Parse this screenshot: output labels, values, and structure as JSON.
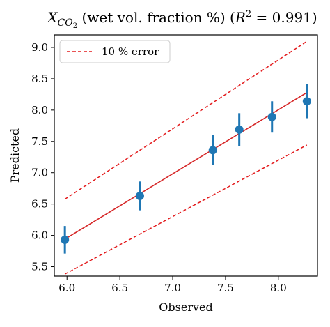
{
  "chart_data": {
    "type": "scatter",
    "title": {
      "var": "X",
      "sub": "CO",
      "subsub": "2",
      "text": " (wet vol. fraction %) (",
      "r": "R",
      "sup": "2",
      "tail": " = 0.991)"
    },
    "xlabel": "Observed",
    "ylabel": "Predicted",
    "xlim": [
      5.88,
      8.37
    ],
    "ylim": [
      5.35,
      9.2
    ],
    "xticks": [
      6.0,
      6.5,
      7.0,
      7.5,
      8.0
    ],
    "xtick_labels": [
      "6.0",
      "6.5",
      "7.0",
      "7.5",
      "8.0"
    ],
    "yticks": [
      5.5,
      6.0,
      6.5,
      7.0,
      7.5,
      8.0,
      8.5,
      9.0
    ],
    "ytick_labels": [
      "5.5",
      "6.0",
      "6.5",
      "7.0",
      "7.5",
      "8.0",
      "8.5",
      "9.0"
    ],
    "grid": false,
    "points": [
      {
        "x": 5.98,
        "y": 5.93,
        "err": 0.22
      },
      {
        "x": 6.69,
        "y": 6.63,
        "err": 0.23
      },
      {
        "x": 7.38,
        "y": 7.36,
        "err": 0.24
      },
      {
        "x": 7.63,
        "y": 7.69,
        "err": 0.26
      },
      {
        "x": 7.94,
        "y": 7.89,
        "err": 0.25
      },
      {
        "x": 8.27,
        "y": 8.14,
        "err": 0.27
      }
    ],
    "fit_line": {
      "x": [
        5.98,
        8.27
      ],
      "y": [
        5.94,
        8.28
      ]
    },
    "error_band": {
      "x": [
        5.98,
        8.27
      ],
      "factor": 0.1
    },
    "legend": {
      "label": "10 % error",
      "placement": "top-left"
    },
    "colors": {
      "points": "#1f77b4",
      "fit": "#d62728",
      "error": "#e31a1c"
    }
  }
}
